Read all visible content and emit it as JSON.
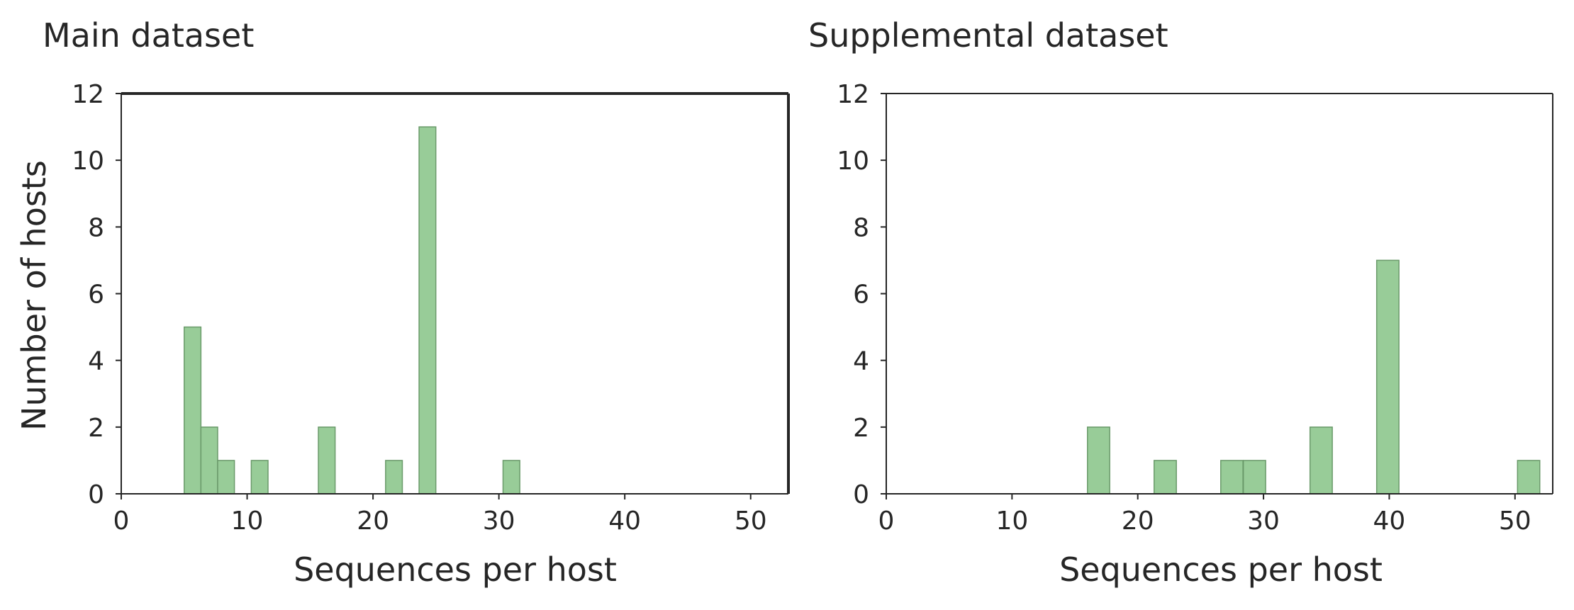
{
  "chart_data": [
    {
      "type": "bar",
      "title": "Main dataset",
      "xlabel": "Sequences per host",
      "ylabel": "Number of hosts",
      "xlim": [
        0,
        53
      ],
      "ylim": [
        0,
        12
      ],
      "xticks": [
        "0",
        "10",
        "20",
        "30",
        "40",
        "50"
      ],
      "yticks": [
        "0",
        "2",
        "4",
        "6",
        "8",
        "10",
        "12"
      ],
      "bar_color": "#98cc98",
      "bar_edge_color": "#6a9a6a",
      "bin_width": 1.33,
      "bars": [
        {
          "x": 5.0,
          "value": 5
        },
        {
          "x": 6.33,
          "value": 2
        },
        {
          "x": 7.66,
          "value": 1
        },
        {
          "x": 10.33,
          "value": 1
        },
        {
          "x": 15.66,
          "value": 2
        },
        {
          "x": 21.0,
          "value": 1
        },
        {
          "x": 23.66,
          "value": 11
        },
        {
          "x": 30.33,
          "value": 1
        }
      ]
    },
    {
      "type": "bar",
      "title": "Supplemental dataset",
      "xlabel": "Sequences per host",
      "ylabel": "",
      "xlim": [
        0,
        53
      ],
      "ylim": [
        0,
        12
      ],
      "xticks": [
        "0",
        "10",
        "20",
        "30",
        "40",
        "50"
      ],
      "yticks": [
        "0",
        "2",
        "4",
        "6",
        "8",
        "10",
        "12"
      ],
      "bar_color": "#98cc98",
      "bar_edge_color": "#6a9a6a",
      "bin_width": 1.77,
      "bars": [
        {
          "x": 16.0,
          "value": 2
        },
        {
          "x": 21.3,
          "value": 1
        },
        {
          "x": 26.6,
          "value": 1
        },
        {
          "x": 28.4,
          "value": 1
        },
        {
          "x": 33.7,
          "value": 2
        },
        {
          "x": 39.0,
          "value": 7
        },
        {
          "x": 50.2,
          "value": 1
        }
      ]
    }
  ]
}
